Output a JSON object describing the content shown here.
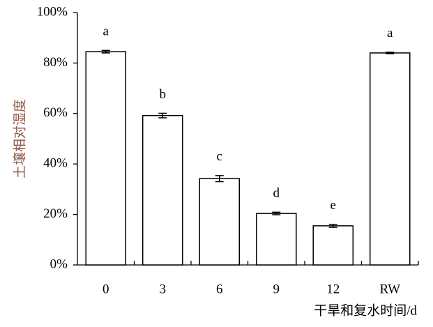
{
  "chart_data": {
    "type": "bar",
    "y_label": "土壤相对湿度",
    "x_label": "干旱和复水时间/d",
    "categories": [
      "0",
      "3",
      "6",
      "9",
      "12",
      "RW"
    ],
    "values": [
      84.5,
      59.2,
      34.2,
      20.4,
      15.5,
      84.0
    ],
    "errors": [
      0.5,
      0.9,
      1.2,
      0.5,
      0.6,
      0.3
    ],
    "annotations": [
      "a",
      "b",
      "c",
      "d",
      "e",
      "a"
    ],
    "color": "#ffffff",
    "ylim": [
      0,
      100
    ],
    "yticks": [
      {
        "value": 0,
        "label": "0%"
      },
      {
        "value": 20,
        "label": "20%"
      },
      {
        "value": 40,
        "label": "40%"
      },
      {
        "value": 60,
        "label": "60%"
      },
      {
        "value": 80,
        "label": "80%"
      },
      {
        "value": 100,
        "label": "100%"
      }
    ],
    "grid": false
  }
}
